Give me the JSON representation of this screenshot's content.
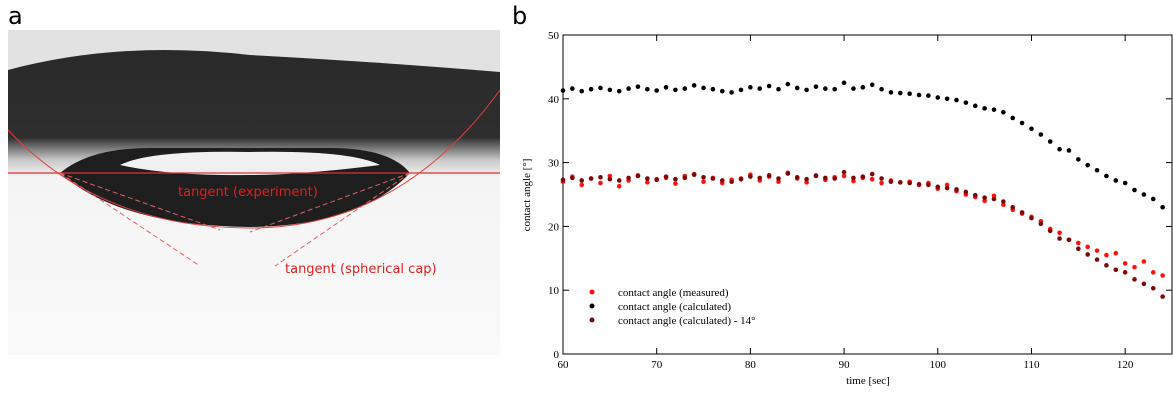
{
  "photo_panel": {
    "label": "a",
    "annotations": [
      "tangent (experiment)",
      "tangent (spherical cap)"
    ]
  },
  "chart_data": {
    "type": "scatter",
    "label": "b",
    "x_label": "time [sec]",
    "y_label": "contact angle [°]",
    "xlim": [
      60,
      125
    ],
    "ylim": [
      0,
      50
    ],
    "xticks": [
      60,
      70,
      80,
      90,
      100,
      110,
      120
    ],
    "yticks": [
      0,
      10,
      20,
      30,
      40,
      50
    ],
    "legend": "lower left",
    "x": [
      60,
      61,
      62,
      63,
      64,
      65,
      66,
      67,
      68,
      69,
      70,
      71,
      72,
      73,
      74,
      75,
      76,
      77,
      78,
      79,
      80,
      81,
      82,
      83,
      84,
      85,
      86,
      87,
      88,
      89,
      90,
      91,
      92,
      93,
      94,
      95,
      96,
      97,
      98,
      99,
      100,
      101,
      102,
      103,
      104,
      105,
      106,
      107,
      108,
      109,
      110,
      111,
      112,
      113,
      114,
      115,
      116,
      117,
      118,
      119,
      120,
      121,
      122,
      123,
      124
    ],
    "series": [
      {
        "name": "contact angle (measured)",
        "color": "#ff1010",
        "values": [
          27.0,
          27.8,
          26.5,
          27.5,
          26.8,
          27.9,
          26.3,
          27.2,
          28.0,
          26.9,
          27.4,
          27.6,
          26.7,
          27.9,
          28.2,
          27.0,
          27.6,
          26.8,
          27.3,
          27.5,
          28.1,
          27.2,
          27.8,
          27.0,
          28.4,
          27.5,
          26.9,
          28.0,
          27.3,
          27.7,
          27.9,
          27.1,
          27.6,
          27.4,
          26.8,
          27.2,
          26.9,
          27.0,
          26.5,
          26.8,
          25.9,
          26.5,
          25.5,
          25.0,
          24.6,
          24.0,
          24.8,
          23.4,
          22.6,
          22.0,
          21.5,
          20.8,
          19.6,
          19.0,
          17.9,
          17.4,
          16.8,
          16.2,
          15.5,
          15.8,
          14.2,
          13.6,
          14.5,
          12.8,
          12.3
        ]
      },
      {
        "name": "contact angle (calculated)",
        "color": "#000000",
        "values": [
          41.3,
          41.6,
          41.2,
          41.5,
          41.7,
          41.4,
          41.2,
          41.6,
          41.9,
          41.5,
          41.3,
          41.8,
          41.4,
          41.6,
          42.1,
          41.7,
          41.5,
          41.2,
          41.0,
          41.4,
          41.8,
          41.6,
          42.0,
          41.5,
          42.3,
          41.7,
          41.4,
          41.9,
          41.6,
          41.5,
          42.5,
          41.6,
          41.8,
          42.2,
          41.5,
          41.0,
          40.9,
          40.8,
          40.6,
          40.5,
          40.2,
          40.0,
          39.8,
          39.4,
          38.9,
          38.5,
          38.3,
          37.9,
          37.0,
          36.2,
          35.3,
          34.4,
          33.3,
          32.1,
          31.9,
          30.5,
          29.6,
          28.8,
          27.9,
          27.2,
          26.8,
          25.7,
          25.0,
          24.3,
          23.0
        ]
      },
      {
        "name": "contact angle (calculated) - 14°",
        "color": "#7a0a0a",
        "values": [
          27.3,
          27.6,
          27.2,
          27.5,
          27.7,
          27.4,
          27.2,
          27.6,
          27.9,
          27.5,
          27.3,
          27.8,
          27.4,
          27.6,
          28.1,
          27.7,
          27.5,
          27.2,
          27.0,
          27.4,
          27.8,
          27.6,
          28.0,
          27.5,
          28.3,
          27.7,
          27.4,
          27.9,
          27.6,
          27.5,
          28.5,
          27.6,
          27.8,
          28.2,
          27.5,
          27.0,
          26.9,
          26.8,
          26.6,
          26.5,
          26.2,
          26.0,
          25.8,
          25.4,
          24.9,
          24.5,
          24.3,
          23.9,
          23.0,
          22.2,
          21.3,
          20.4,
          19.3,
          18.1,
          17.9,
          16.5,
          15.6,
          14.8,
          13.9,
          13.2,
          12.8,
          11.7,
          11.0,
          10.3,
          9.0
        ]
      }
    ]
  }
}
